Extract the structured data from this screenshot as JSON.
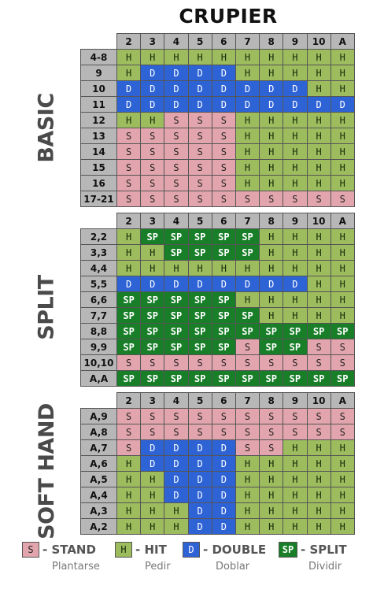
{
  "title": "CRUPIER",
  "dealer_cards": [
    "2",
    "3",
    "4",
    "5",
    "6",
    "7",
    "8",
    "9",
    "10",
    "A"
  ],
  "sections": [
    {
      "label": "BASIC",
      "rows": [
        {
          "hand": "4-8",
          "cells": [
            "H",
            "H",
            "H",
            "H",
            "H",
            "H",
            "H",
            "H",
            "H",
            "H"
          ]
        },
        {
          "hand": "9",
          "cells": [
            "H",
            "D",
            "D",
            "D",
            "D",
            "H",
            "H",
            "H",
            "H",
            "H"
          ]
        },
        {
          "hand": "10",
          "cells": [
            "D",
            "D",
            "D",
            "D",
            "D",
            "D",
            "D",
            "D",
            "H",
            "H"
          ]
        },
        {
          "hand": "11",
          "cells": [
            "D",
            "D",
            "D",
            "D",
            "D",
            "D",
            "D",
            "D",
            "D",
            "D"
          ]
        },
        {
          "hand": "12",
          "cells": [
            "H",
            "H",
            "S",
            "S",
            "S",
            "H",
            "H",
            "H",
            "H",
            "H"
          ]
        },
        {
          "hand": "13",
          "cells": [
            "S",
            "S",
            "S",
            "S",
            "S",
            "H",
            "H",
            "H",
            "H",
            "H"
          ]
        },
        {
          "hand": "14",
          "cells": [
            "S",
            "S",
            "S",
            "S",
            "S",
            "H",
            "H",
            "H",
            "H",
            "H"
          ]
        },
        {
          "hand": "15",
          "cells": [
            "S",
            "S",
            "S",
            "S",
            "S",
            "H",
            "H",
            "H",
            "H",
            "H"
          ]
        },
        {
          "hand": "16",
          "cells": [
            "S",
            "S",
            "S",
            "S",
            "S",
            "H",
            "H",
            "H",
            "H",
            "H"
          ]
        },
        {
          "hand": "17-21",
          "cells": [
            "S",
            "S",
            "S",
            "S",
            "S",
            "S",
            "S",
            "S",
            "S",
            "S"
          ]
        }
      ]
    },
    {
      "label": "SPLIT",
      "rows": [
        {
          "hand": "2,2",
          "cells": [
            "H",
            "SP",
            "SP",
            "SP",
            "SP",
            "SP",
            "H",
            "H",
            "H",
            "H"
          ]
        },
        {
          "hand": "3,3",
          "cells": [
            "H",
            "H",
            "SP",
            "SP",
            "SP",
            "SP",
            "H",
            "H",
            "H",
            "H"
          ]
        },
        {
          "hand": "4,4",
          "cells": [
            "H",
            "H",
            "H",
            "H",
            "H",
            "H",
            "H",
            "H",
            "H",
            "H"
          ]
        },
        {
          "hand": "5,5",
          "cells": [
            "D",
            "D",
            "D",
            "D",
            "D",
            "D",
            "D",
            "D",
            "H",
            "H"
          ]
        },
        {
          "hand": "6,6",
          "cells": [
            "SP",
            "SP",
            "SP",
            "SP",
            "SP",
            "H",
            "H",
            "H",
            "H",
            "H"
          ]
        },
        {
          "hand": "7,7",
          "cells": [
            "SP",
            "SP",
            "SP",
            "SP",
            "SP",
            "SP",
            "H",
            "H",
            "H",
            "H"
          ]
        },
        {
          "hand": "8,8",
          "cells": [
            "SP",
            "SP",
            "SP",
            "SP",
            "SP",
            "SP",
            "SP",
            "SP",
            "SP",
            "SP"
          ]
        },
        {
          "hand": "9,9",
          "cells": [
            "SP",
            "SP",
            "SP",
            "SP",
            "SP",
            "S",
            "SP",
            "SP",
            "S",
            "S"
          ]
        },
        {
          "hand": "10,10",
          "cells": [
            "S",
            "S",
            "S",
            "S",
            "S",
            "S",
            "S",
            "S",
            "S",
            "S"
          ]
        },
        {
          "hand": "A,A",
          "cells": [
            "SP",
            "SP",
            "SP",
            "SP",
            "SP",
            "SP",
            "SP",
            "SP",
            "SP",
            "SP"
          ]
        }
      ]
    },
    {
      "label": "SOFT HAND",
      "rows": [
        {
          "hand": "A,9",
          "cells": [
            "S",
            "S",
            "S",
            "S",
            "S",
            "S",
            "S",
            "S",
            "S",
            "S"
          ]
        },
        {
          "hand": "A,8",
          "cells": [
            "S",
            "S",
            "S",
            "S",
            "S",
            "S",
            "S",
            "S",
            "S",
            "S"
          ]
        },
        {
          "hand": "A,7",
          "cells": [
            "S",
            "D",
            "D",
            "D",
            "D",
            "S",
            "S",
            "H",
            "H",
            "H"
          ]
        },
        {
          "hand": "A,6",
          "cells": [
            "H",
            "D",
            "D",
            "D",
            "D",
            "H",
            "H",
            "H",
            "H",
            "H"
          ]
        },
        {
          "hand": "A,5",
          "cells": [
            "H",
            "H",
            "D",
            "D",
            "D",
            "H",
            "H",
            "H",
            "H",
            "H"
          ]
        },
        {
          "hand": "A,4",
          "cells": [
            "H",
            "H",
            "D",
            "D",
            "D",
            "H",
            "H",
            "H",
            "H",
            "H"
          ]
        },
        {
          "hand": "A,3",
          "cells": [
            "H",
            "H",
            "H",
            "D",
            "D",
            "H",
            "H",
            "H",
            "H",
            "H"
          ]
        },
        {
          "hand": "A,2",
          "cells": [
            "H",
            "H",
            "H",
            "D",
            "D",
            "H",
            "H",
            "H",
            "H",
            "H"
          ]
        }
      ]
    }
  ],
  "legend": [
    {
      "code": "S",
      "label": "- STAND",
      "sub": "Plantarse"
    },
    {
      "code": "H",
      "label": "- HIT",
      "sub": "Pedir"
    },
    {
      "code": "D",
      "label": "- DOUBLE",
      "sub": "Doblar"
    },
    {
      "code": "SP",
      "label": "- SPLIT",
      "sub": "Dividir"
    }
  ],
  "colors": {
    "S": "#e3a5ad",
    "H": "#9cbc5e",
    "D": "#2e63d6",
    "SP": "#187e28",
    "header": "#b7b7b7"
  }
}
